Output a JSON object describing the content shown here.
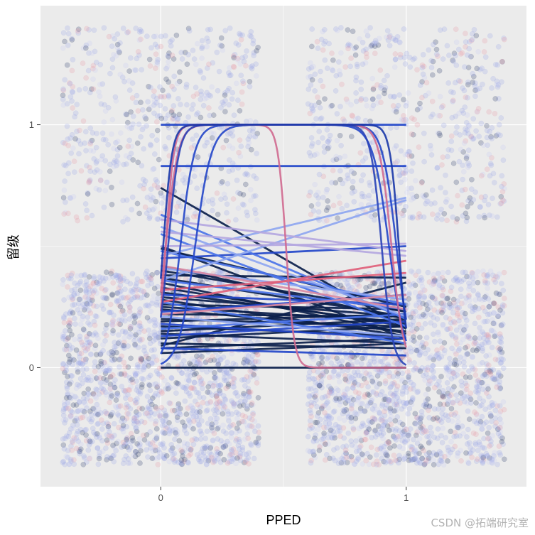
{
  "chart_data": {
    "type": "scatter",
    "xlabel": "PPED",
    "ylabel": "留级",
    "x_ticks": [
      "0",
      "1"
    ],
    "y_ticks": [
      "0",
      "1"
    ],
    "xlim": [
      -0.49,
      1.49
    ],
    "ylim": [
      -0.49,
      1.49
    ],
    "grid": true,
    "legend": "none",
    "jitter_points": {
      "description_groups": [
        {
          "x": 0,
          "y": 0,
          "count": 1800
        },
        {
          "x": 1,
          "y": 0,
          "count": 1800
        },
        {
          "x": 0,
          "y": 1,
          "count": 650
        },
        {
          "x": 1,
          "y": 1,
          "count": 650
        }
      ],
      "jitter": 0.4,
      "colors": [
        "#9aa6e6",
        "#e79aa8",
        "#2a3a6a",
        "#c8cdf2"
      ],
      "alpha": 0.25
    },
    "fitted_curves": {
      "x_range": [
        0,
        1
      ],
      "lines": [
        {
          "y0": 0.74,
          "y1": 0.16,
          "color": "#0b1f4b"
        },
        {
          "y0": 0.5,
          "y1": 0.12,
          "color": "#0b1f4b"
        },
        {
          "y0": 0.49,
          "y1": 0.25,
          "color": "#0b1f4b"
        },
        {
          "y0": 0.42,
          "y1": 0.2,
          "color": "#0b1f4b"
        },
        {
          "y0": 0.4,
          "y1": 0.23,
          "color": "#0b1f4b"
        },
        {
          "y0": 0.37,
          "y1": 0.21,
          "color": "#0b1f4b"
        },
        {
          "y0": 0.35,
          "y1": 0.14,
          "color": "#0b1f4b"
        },
        {
          "y0": 0.33,
          "y1": 0.17,
          "color": "#0b1f4b"
        },
        {
          "y0": 0.31,
          "y1": 0.18,
          "color": "#0b1f4b"
        },
        {
          "y0": 0.29,
          "y1": 0.21,
          "color": "#0b1f4b"
        },
        {
          "y0": 0.28,
          "y1": 0.13,
          "color": "#0b1f4b"
        },
        {
          "y0": 0.26,
          "y1": 0.24,
          "color": "#0b1f4b"
        },
        {
          "y0": 0.25,
          "y1": 0.19,
          "color": "#0b1f4b"
        },
        {
          "y0": 0.24,
          "y1": 0.15,
          "color": "#0b1f4b"
        },
        {
          "y0": 0.22,
          "y1": 0.21,
          "color": "#0b1f4b"
        },
        {
          "y0": 0.2,
          "y1": 0.17,
          "color": "#0b1f4b"
        },
        {
          "y0": 0.19,
          "y1": 0.22,
          "color": "#0b1f4b"
        },
        {
          "y0": 0.17,
          "y1": 0.13,
          "color": "#0b1f4b"
        },
        {
          "y0": 0.15,
          "y1": 0.2,
          "color": "#0b1f4b"
        },
        {
          "y0": 0.14,
          "y1": 0.1,
          "color": "#0b1f4b"
        },
        {
          "y0": 0.12,
          "y1": 0.17,
          "color": "#0b1f4b"
        },
        {
          "y0": 0.1,
          "y1": 0.08,
          "color": "#0b1f4b"
        },
        {
          "y0": 0.08,
          "y1": 0.12,
          "color": "#0b1f4b"
        },
        {
          "y0": 0.06,
          "y1": 0.1,
          "color": "#0b1f4b"
        },
        {
          "y0": 0.09,
          "y1": 0.35,
          "color": "#0b1f4b"
        },
        {
          "y0": 0.38,
          "y1": 0.37,
          "color": "#0b1f4b"
        },
        {
          "y0": 1.0,
          "y1": 1.0,
          "color": "#2346c9"
        },
        {
          "y0": 0.83,
          "y1": 0.83,
          "color": "#2346c9"
        },
        {
          "y0": 0.45,
          "y1": 0.5,
          "color": "#2346c9"
        },
        {
          "y0": 0.3,
          "y1": 0.26,
          "color": "#2346c9"
        },
        {
          "y0": 0.23,
          "y1": 0.3,
          "color": "#2346c9"
        },
        {
          "y0": 0.18,
          "y1": 0.12,
          "color": "#2346c9"
        },
        {
          "y0": 0.13,
          "y1": 0.19,
          "color": "#2346c9"
        },
        {
          "y0": 0.08,
          "y1": 0.05,
          "color": "#2346c9"
        },
        {
          "y0": 0.0,
          "y1": 0.0,
          "color": "#0b1f4b"
        },
        {
          "y0": 0.63,
          "y1": 0.2,
          "color": "#4a73e8"
        },
        {
          "y0": 0.55,
          "y1": 0.17,
          "color": "#4a73e8"
        },
        {
          "y0": 0.48,
          "y1": 0.26,
          "color": "#4a73e8"
        },
        {
          "y0": 0.36,
          "y1": 0.24,
          "color": "#4a73e8"
        },
        {
          "y0": 0.27,
          "y1": 0.1,
          "color": "#4a73e8"
        },
        {
          "y0": 0.16,
          "y1": 0.22,
          "color": "#4a73e8"
        },
        {
          "y0": 0.46,
          "y1": 0.7,
          "color": "#8ea6f0"
        },
        {
          "y0": 0.36,
          "y1": 0.69,
          "color": "#8ea6f0"
        },
        {
          "y0": 0.58,
          "y1": 0.21,
          "color": "#8ea6f0"
        },
        {
          "y0": 0.41,
          "y1": 0.28,
          "color": "#8ea6f0"
        },
        {
          "y0": 0.21,
          "y1": 0.13,
          "color": "#8ea6f0"
        },
        {
          "y0": 0.61,
          "y1": 0.48,
          "color": "#b4a7e0"
        },
        {
          "y0": 0.5,
          "y1": 0.51,
          "color": "#b4a7e0"
        },
        {
          "y0": 0.56,
          "y1": 0.46,
          "color": "#b4a7e0"
        },
        {
          "y0": 0.32,
          "y1": 0.39,
          "color": "#e0607a"
        },
        {
          "y0": 0.27,
          "y1": 0.44,
          "color": "#e0607a"
        },
        {
          "y0": 0.42,
          "y1": 0.24,
          "color": "#d98aa3"
        },
        {
          "y0": 0.22,
          "y1": 0.3,
          "color": "#d98aa3"
        }
      ],
      "sigmoids": [
        {
          "color": "#2346c9",
          "x_mid_up": 0.14,
          "x_mid_down": 0.93,
          "steep": 30
        },
        {
          "color": "#2346c9",
          "x_mid_up": 0.08,
          "x_mid_down": 0.96,
          "steep": 35
        },
        {
          "color": "#d06a90",
          "x_mid_up": 0.02,
          "x_mid_down": 0.51,
          "steep": 60
        },
        {
          "color": "#d06a90",
          "x_mid_up": 0.02,
          "x_mid_down": 0.94,
          "steep": 40
        },
        {
          "color": "#2a44b8",
          "x_mid_up": 0.03,
          "x_mid_down": 0.9,
          "steep": 45
        },
        {
          "color": "#1a37a8",
          "x_mid_up": 0.01,
          "x_mid_down": 0.97,
          "steep": 55
        }
      ]
    }
  },
  "watermark": "CSDN @拓端研究室"
}
